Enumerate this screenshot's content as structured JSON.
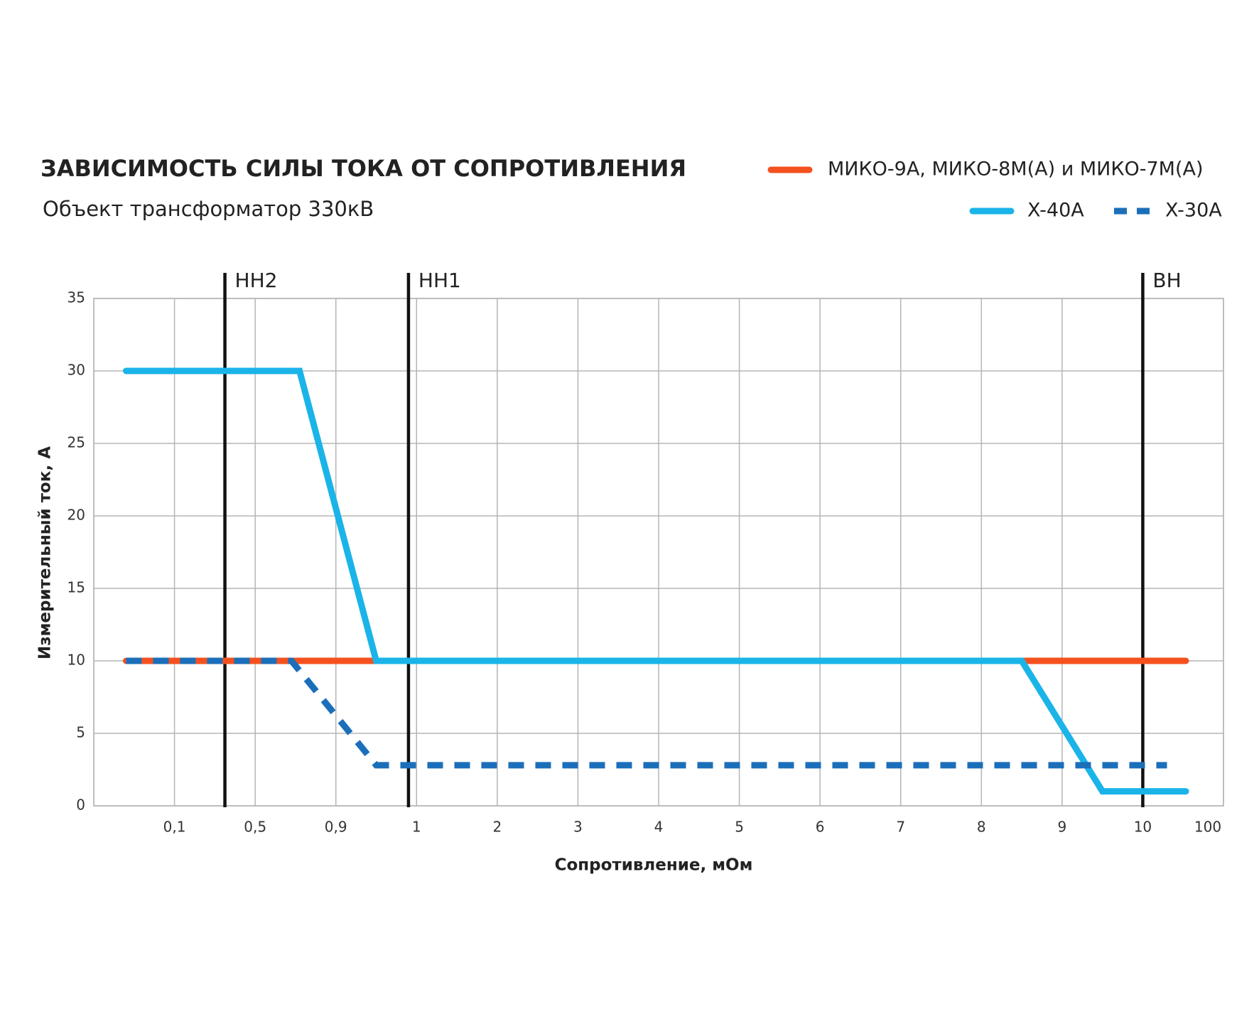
{
  "chart_data": {
    "type": "line",
    "title": "ЗАВИСИМОСТЬ СИЛЫ ТОКА ОТ СОПРОТИВЛЕНИЯ",
    "subtitle": "Объект трансформатор 330кВ",
    "x_label": "Сопротивление, мОм",
    "y_label": "Измерительный ток, А",
    "x_scale": "piecewise",
    "xlim": [
      0,
      100
    ],
    "xticks": [
      {
        "value": 0.1,
        "label": "0,1"
      },
      {
        "value": 0.5,
        "label": "0,5"
      },
      {
        "value": 0.9,
        "label": "0,9"
      },
      1,
      2,
      3,
      4,
      5,
      6,
      7,
      8,
      9,
      10,
      100
    ],
    "ylim": [
      0,
      35
    ],
    "yticks": [
      0,
      5,
      10,
      15,
      20,
      25,
      30,
      35
    ],
    "grid": true,
    "legend": "top-right",
    "series": [
      {
        "name": "МИКО-9А, МИКО-8М(А) и МИКО-7М(А)",
        "color": "#f4511e",
        "dash": false,
        "x": [
          0.04,
          58
        ],
        "values": [
          10,
          10
        ]
      },
      {
        "name": "X-40A",
        "color": "#1ab4e8",
        "dash": false,
        "x": [
          0.04,
          0.72,
          0.95,
          8.5,
          9.5,
          58
        ],
        "values": [
          30,
          30,
          10,
          10,
          1,
          1
        ]
      },
      {
        "name": "X-30A",
        "color": "#1b6fba",
        "dash": true,
        "x": [
          0.04,
          0.68,
          0.95,
          37
        ],
        "values": [
          10,
          10,
          2.8,
          2.8
        ]
      }
    ],
    "markers": [
      {
        "label": "НН2",
        "x": 0.35
      },
      {
        "label": "НН1",
        "x": 0.99
      },
      {
        "label": "ВН",
        "x": 10
      }
    ]
  }
}
